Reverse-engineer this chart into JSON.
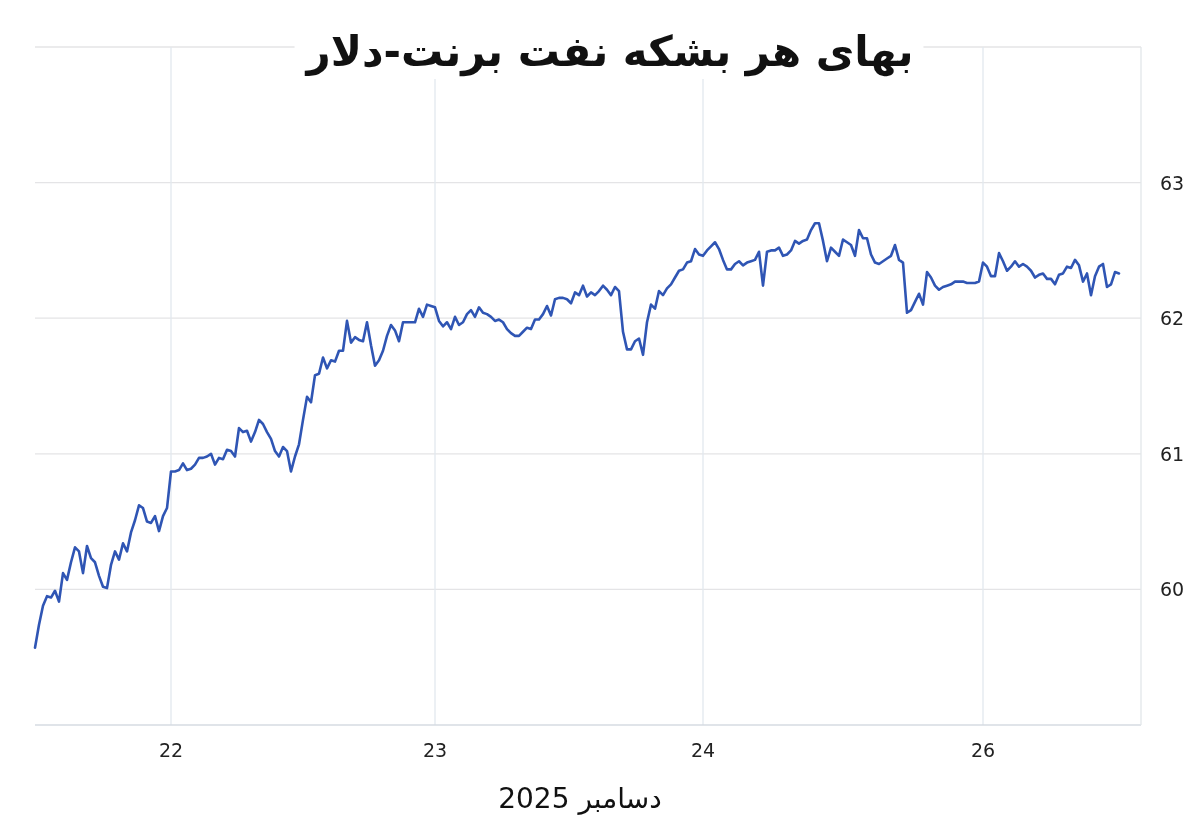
{
  "chart_data": {
    "type": "line",
    "title": "بهای هر بشکه نفت برنت-دلار",
    "xlabel": "دسامبر 2025",
    "categories": [
      null,
      null,
      null,
      null,
      null,
      null,
      null,
      null,
      null,
      null,
      null,
      null,
      null,
      null,
      null,
      null,
      null,
      null,
      null,
      null,
      null,
      null,
      null,
      null,
      null,
      null,
      null,
      null,
      null,
      null,
      null,
      null,
      null,
      null,
      "22",
      null,
      null,
      null,
      null,
      null,
      null,
      null,
      null,
      null,
      null,
      null,
      null,
      null,
      null,
      null,
      null,
      null,
      null,
      null,
      null,
      null,
      null,
      null,
      null,
      null,
      null,
      null,
      null,
      null,
      null,
      null,
      null,
      null,
      null,
      null,
      null,
      null,
      null,
      null,
      null,
      null,
      null,
      null,
      null,
      null,
      null,
      null,
      null,
      null,
      null,
      null,
      null,
      null,
      null,
      null,
      null,
      null,
      null,
      null,
      null,
      null,
      null,
      null,
      null,
      null,
      "23",
      null,
      null,
      null,
      null,
      null,
      null,
      null,
      null,
      null,
      null,
      null,
      null,
      null,
      null,
      null,
      null,
      null,
      null,
      null,
      null,
      null,
      null,
      null,
      null,
      null,
      null,
      null,
      null,
      null,
      null,
      null,
      null,
      null,
      null,
      null,
      null,
      null,
      null,
      null,
      null,
      null,
      null,
      null,
      null,
      null,
      null,
      null,
      null,
      null,
      null,
      null,
      null,
      null,
      null,
      null,
      null,
      null,
      null,
      null,
      null,
      null,
      null,
      null,
      null,
      null,
      null,
      "24",
      null,
      null,
      null,
      null,
      null,
      null,
      null,
      null,
      null,
      null,
      null,
      null,
      null,
      null,
      null,
      null,
      null,
      null,
      null,
      null,
      null,
      null,
      null,
      null,
      null,
      null,
      null,
      null,
      null,
      null,
      null,
      null,
      null,
      null,
      null,
      null,
      null,
      null,
      null,
      null,
      null,
      null,
      null,
      null,
      null,
      null,
      null,
      null,
      null,
      null,
      null,
      null,
      null,
      null,
      null,
      null,
      null,
      null,
      null,
      null,
      null,
      null,
      null,
      null,
      null,
      null,
      null,
      null,
      null,
      "26",
      null,
      null,
      null,
      null,
      null,
      null,
      null,
      null,
      null,
      null,
      null,
      null,
      null,
      null,
      null,
      null,
      null,
      null,
      null,
      null,
      null,
      null,
      null,
      null,
      null,
      null,
      null,
      null,
      null,
      null,
      null,
      null,
      null,
      null
    ],
    "series": [
      {
        "color": "#2f55b4",
        "values": [
          59.57,
          59.74,
          59.88,
          59.95,
          59.94,
          59.99,
          59.91,
          60.12,
          60.07,
          60.2,
          60.31,
          60.28,
          60.12,
          60.32,
          60.23,
          60.2,
          60.1,
          60.02,
          60.01,
          60.18,
          60.28,
          60.22,
          60.34,
          60.28,
          60.42,
          60.51,
          60.62,
          60.6,
          60.5,
          60.49,
          60.54,
          60.43,
          60.54,
          60.6,
          60.87,
          60.87,
          60.88,
          60.93,
          60.88,
          60.89,
          60.92,
          60.97,
          60.97,
          60.98,
          61.0,
          60.92,
          60.97,
          60.96,
          61.03,
          61.02,
          60.98,
          61.19,
          61.16,
          61.17,
          61.09,
          61.16,
          61.25,
          61.22,
          61.16,
          61.11,
          61.02,
          60.98,
          61.05,
          61.02,
          60.87,
          60.98,
          61.07,
          61.25,
          61.42,
          61.38,
          61.58,
          61.59,
          61.71,
          61.63,
          61.69,
          61.68,
          61.76,
          61.76,
          61.98,
          61.82,
          61.86,
          61.84,
          61.83,
          61.97,
          61.8,
          61.65,
          61.69,
          61.76,
          61.87,
          61.95,
          61.91,
          61.83,
          61.97,
          61.97,
          61.97,
          61.97,
          62.07,
          62.01,
          62.1,
          62.09,
          62.08,
          61.98,
          61.94,
          61.97,
          61.92,
          62.01,
          61.95,
          61.97,
          62.03,
          62.06,
          62.01,
          62.08,
          62.04,
          62.03,
          62.01,
          61.98,
          61.99,
          61.97,
          61.92,
          61.89,
          61.87,
          61.87,
          61.9,
          61.93,
          61.92,
          61.99,
          61.99,
          62.03,
          62.09,
          62.02,
          62.14,
          62.15,
          62.15,
          62.14,
          62.11,
          62.19,
          62.17,
          62.24,
          62.16,
          62.19,
          62.17,
          62.2,
          62.24,
          62.21,
          62.17,
          62.23,
          62.2,
          61.9,
          61.77,
          61.77,
          61.83,
          61.85,
          61.73,
          61.97,
          62.1,
          62.07,
          62.2,
          62.17,
          62.22,
          62.25,
          62.3,
          62.35,
          62.36,
          62.41,
          62.42,
          62.51,
          62.47,
          62.46,
          62.5,
          62.53,
          62.56,
          62.51,
          62.43,
          62.36,
          62.36,
          62.4,
          62.42,
          62.39,
          62.41,
          62.42,
          62.43,
          62.49,
          62.24,
          62.49,
          62.5,
          62.5,
          62.52,
          62.46,
          62.47,
          62.5,
          62.57,
          62.55,
          62.57,
          62.58,
          62.65,
          62.7,
          62.7,
          62.57,
          62.42,
          62.52,
          62.49,
          62.46,
          62.58,
          62.56,
          62.54,
          62.46,
          62.65,
          62.59,
          62.59,
          62.47,
          62.41,
          62.4,
          62.42,
          62.44,
          62.46,
          62.54,
          62.43,
          62.41,
          62.04,
          62.06,
          62.12,
          62.18,
          62.1,
          62.34,
          62.3,
          62.24,
          62.21,
          62.23,
          62.24,
          62.25,
          62.27,
          62.27,
          62.27,
          62.26,
          62.26,
          62.26,
          62.27,
          62.41,
          62.38,
          62.31,
          62.31,
          62.48,
          62.42,
          62.35,
          62.38,
          62.42,
          62.38,
          62.4,
          62.38,
          62.35,
          62.3,
          62.32,
          62.33,
          62.29,
          62.29,
          62.25,
          62.32,
          62.33,
          62.38,
          62.37,
          62.43,
          62.39,
          62.27,
          62.33,
          62.17,
          62.31,
          62.38,
          62.4,
          62.23,
          62.25,
          62.34,
          62.33
        ]
      }
    ],
    "ylim": [
      59,
      64
    ],
    "yticks": [
      60,
      61,
      62,
      63,
      {
        "value": 64,
        "label": null
      }
    ],
    "grid": true,
    "line_style": "solid"
  }
}
